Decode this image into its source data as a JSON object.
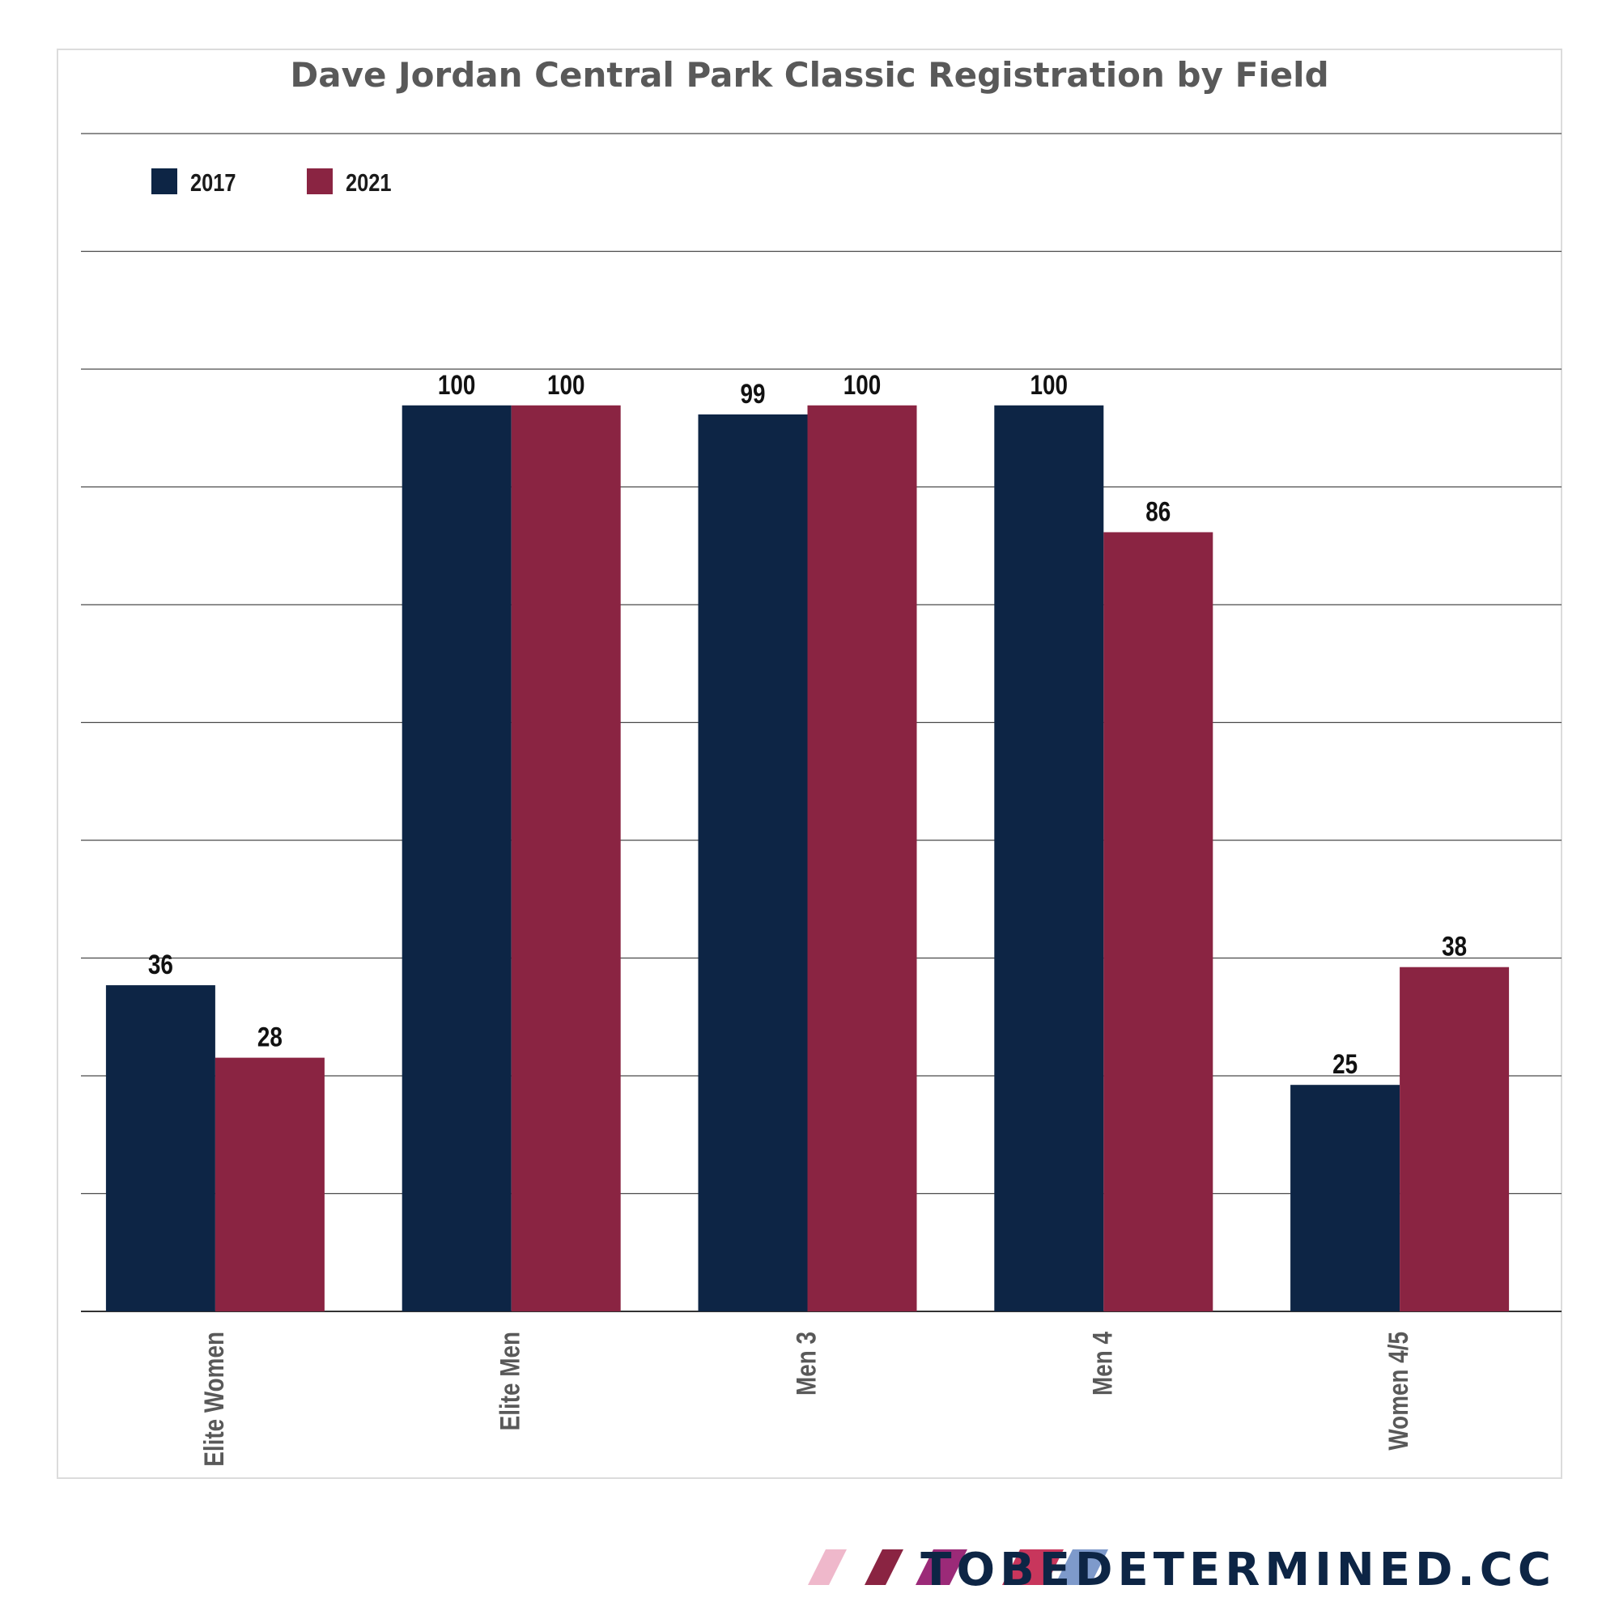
{
  "chart_data": {
    "type": "bar",
    "title": "Dave Jordan Central Park Classic Registration by Field",
    "categories": [
      "Elite Women",
      "Elite Men",
      "Men 3",
      "Men 4",
      "Women 4/5"
    ],
    "series": [
      {
        "name": "2017",
        "color": "#0d2545",
        "values": [
          36,
          100,
          99,
          100,
          25
        ]
      },
      {
        "name": "2021",
        "color": "#8a2442",
        "values": [
          28,
          100,
          100,
          86,
          38
        ]
      }
    ],
    "ylim": [
      0,
      130
    ],
    "grid": true,
    "legend": "top-left",
    "xlabel": "",
    "ylabel": ""
  },
  "branding": {
    "text": "TOBEDETERMINED.CC",
    "color": "#0d2545",
    "stripe_colors": [
      "#efb8cb",
      "#8a2442",
      "#9b2a78",
      "#c8365c",
      "#7e9acb"
    ]
  }
}
